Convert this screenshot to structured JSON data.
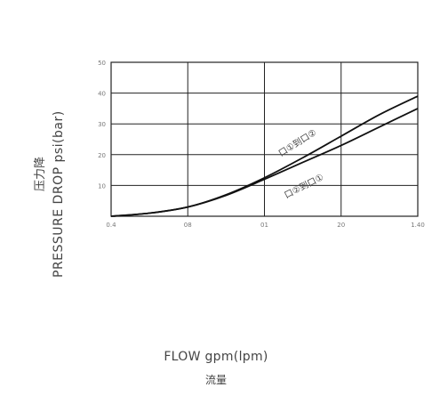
{
  "chart_data": {
    "type": "line",
    "ylabel": "PRESSURE DROP psi(bar)",
    "ylabel_cn": "压力降",
    "xlabel": "FLOW gpm(lpm)",
    "xlabel_cn": "流量",
    "x_tick_labels": [
      "0.4",
      "08",
      "01",
      "20",
      "1.40"
    ],
    "y_tick_labels": [
      "10",
      "20",
      "30",
      "40",
      "50"
    ],
    "xlim": [
      0,
      4
    ],
    "ylim": [
      0,
      50
    ],
    "grid": true,
    "series": [
      {
        "name": "口①到口②",
        "x": [
          0,
          0.5,
          1,
          1.5,
          2,
          2.5,
          3,
          3.5,
          4
        ],
        "y": [
          0,
          1,
          3,
          7,
          12.5,
          19,
          26,
          33,
          39
        ]
      },
      {
        "name": "口②到口①",
        "x": [
          0,
          0.5,
          1,
          1.5,
          2,
          2.5,
          3,
          3.5,
          4
        ],
        "y": [
          0,
          1,
          3,
          6.8,
          12,
          17.5,
          23,
          29,
          35
        ]
      }
    ]
  }
}
